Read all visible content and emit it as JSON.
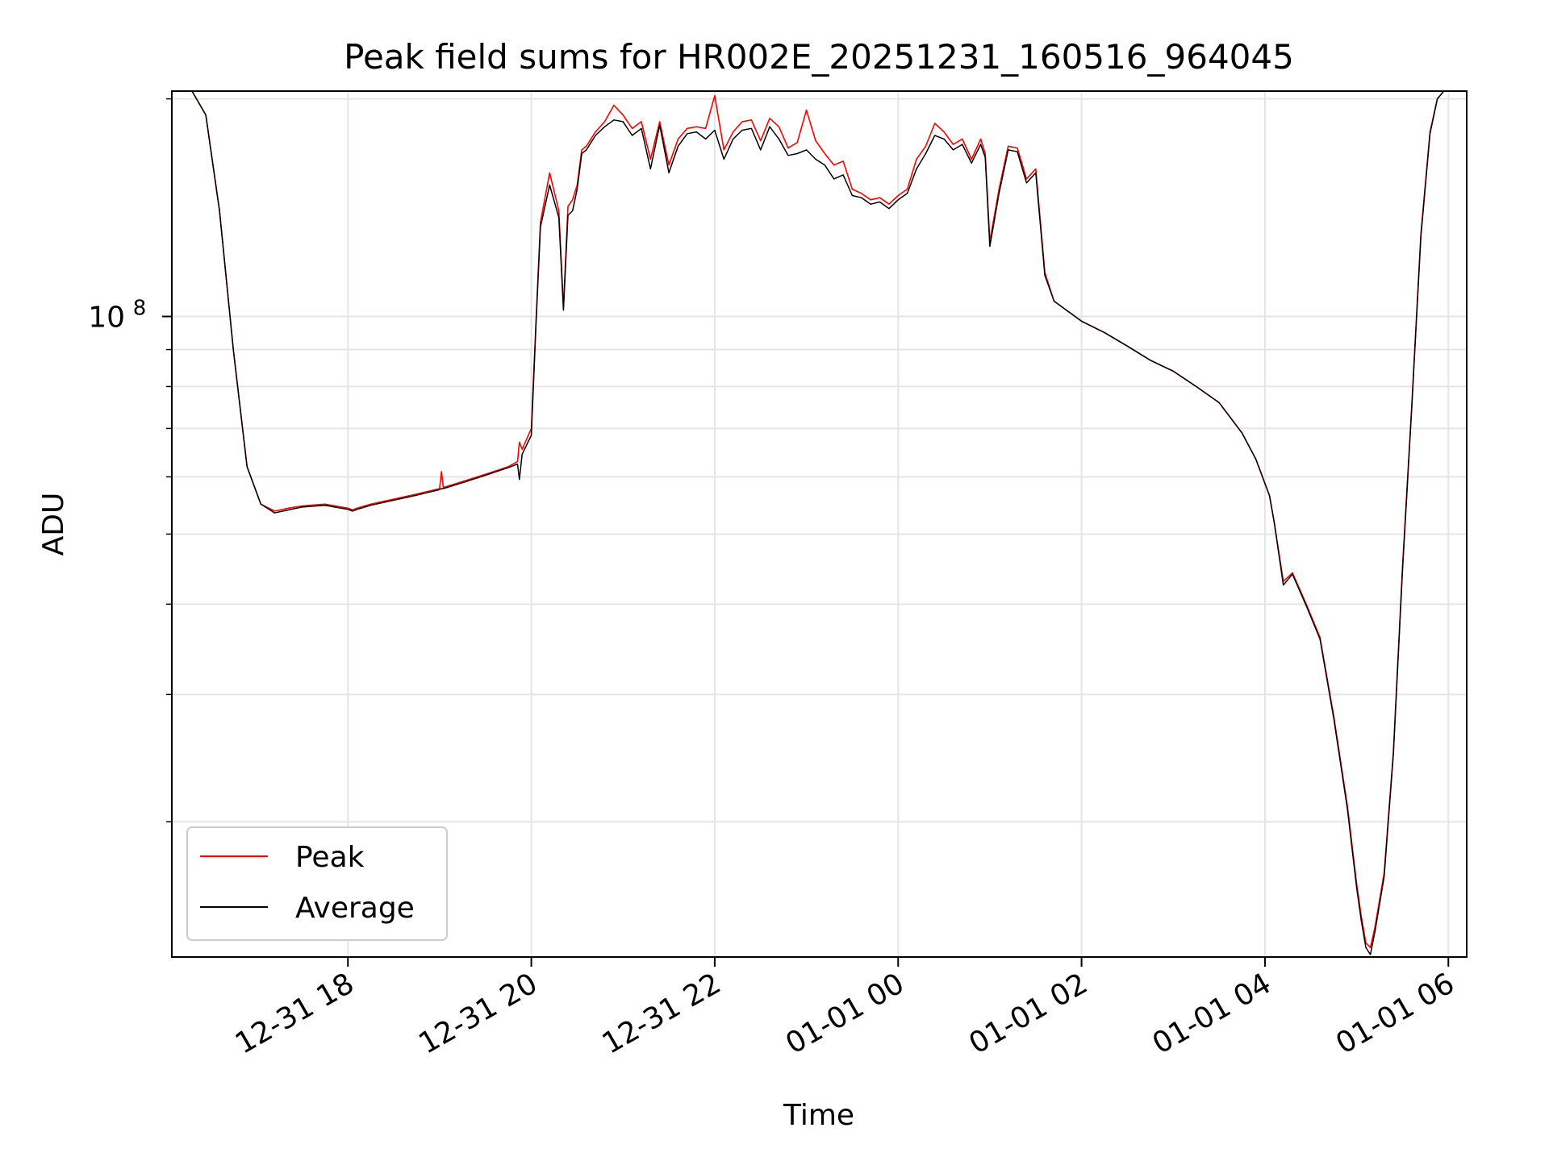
{
  "chart_data": {
    "type": "line",
    "title": "Peak field sums for HR002E_20251231_160516_964045",
    "xlabel": "Time",
    "ylabel": "ADU",
    "yscale": "log",
    "ylim": [
      13000000,
      205000000
    ],
    "xlim": [
      16.08,
      30.2
    ],
    "grid": true,
    "legend_position": "lower-left",
    "y_major_ticks": [
      {
        "value": 100000000,
        "label_base": "10",
        "label_exp": "8"
      }
    ],
    "y_minor_ticks": [
      20000000,
      30000000,
      40000000,
      50000000,
      60000000,
      70000000,
      80000000,
      90000000,
      200000000
    ],
    "x_ticks": [
      {
        "value": 18,
        "label": "12-31 18"
      },
      {
        "value": 20,
        "label": "12-31 20"
      },
      {
        "value": 22,
        "label": "12-31 22"
      },
      {
        "value": 24,
        "label": "01-01 00"
      },
      {
        "value": 26,
        "label": "01-01 02"
      },
      {
        "value": 28,
        "label": "01-01 04"
      },
      {
        "value": 30,
        "label": "01-01 06"
      }
    ],
    "x_unit": "hours since 2025-12-31 00:00",
    "series": [
      {
        "name": "Peak",
        "color": "#ff0000",
        "x": [
          16.3,
          16.45,
          16.6,
          16.75,
          16.9,
          17.05,
          17.2,
          17.35,
          17.5,
          17.75,
          18.0,
          18.05,
          18.1,
          18.25,
          18.5,
          18.75,
          19.0,
          19.02,
          19.04,
          19.25,
          19.5,
          19.75,
          19.85,
          19.87,
          19.9,
          20.0,
          20.05,
          20.1,
          20.2,
          20.3,
          20.35,
          20.4,
          20.45,
          20.5,
          20.55,
          20.6,
          20.7,
          20.8,
          20.9,
          21.0,
          21.1,
          21.2,
          21.3,
          21.4,
          21.5,
          21.6,
          21.7,
          21.8,
          21.9,
          22.0,
          22.1,
          22.2,
          22.3,
          22.4,
          22.5,
          22.6,
          22.7,
          22.8,
          22.9,
          23.0,
          23.1,
          23.2,
          23.3,
          23.4,
          23.5,
          23.6,
          23.7,
          23.8,
          23.9,
          24.0,
          24.1,
          24.2,
          24.3,
          24.4,
          24.5,
          24.6,
          24.7,
          24.8,
          24.9,
          24.95,
          25.0,
          25.1,
          25.2,
          25.3,
          25.4,
          25.5,
          25.6,
          25.7,
          26.0,
          26.25,
          26.5,
          26.75,
          27.0,
          27.25,
          27.5,
          27.75,
          27.9,
          28.05,
          28.1,
          28.2,
          28.3,
          28.45,
          28.6,
          28.75,
          28.9,
          29.0,
          29.05,
          29.1,
          29.15,
          29.2,
          29.3,
          29.4,
          29.5,
          29.6,
          29.7,
          29.8,
          29.88,
          29.95
        ],
        "values": [
          205000000,
          190000000,
          140000000,
          90000000,
          62000000,
          55000000,
          53800000,
          54300000,
          54700000,
          55000000,
          54300000,
          54000000,
          54300000,
          55000000,
          55900000,
          56800000,
          57800000,
          61000000,
          58000000,
          59100000,
          60500000,
          62000000,
          63000000,
          67000000,
          65500000,
          70000000,
          98000000,
          135000000,
          158000000,
          140000000,
          103000000,
          142000000,
          145000000,
          152000000,
          170000000,
          172000000,
          180000000,
          186000000,
          196000000,
          190000000,
          182000000,
          186000000,
          165000000,
          186000000,
          162000000,
          176000000,
          182000000,
          183000000,
          182000000,
          202000000,
          170000000,
          180000000,
          186000000,
          187000000,
          175000000,
          188000000,
          183000000,
          171000000,
          174000000,
          193000000,
          175000000,
          168000000,
          162000000,
          164000000,
          150000000,
          148000000,
          145000000,
          146000000,
          143000000,
          147000000,
          150000000,
          165000000,
          172000000,
          185000000,
          180000000,
          173000000,
          176000000,
          165000000,
          176000000,
          168000000,
          127000000,
          150000000,
          172000000,
          171000000,
          155000000,
          160000000,
          115000000,
          105000000,
          98500000,
          95000000,
          91000000,
          87000000,
          84000000,
          80000000,
          76000000,
          69000000,
          63500000,
          56500000,
          52000000,
          43000000,
          44200000,
          40000000,
          36000000,
          28000000,
          21000000,
          16400000,
          14800000,
          13600000,
          13400000,
          14300000,
          17000000,
          25000000,
          45000000,
          75000000,
          130000000,
          180000000,
          200000000,
          205000000
        ]
      },
      {
        "name": "Average",
        "color": "#000000",
        "x": [
          16.3,
          16.45,
          16.6,
          16.75,
          16.9,
          17.05,
          17.2,
          17.35,
          17.5,
          17.75,
          18.0,
          18.05,
          18.1,
          18.25,
          18.5,
          18.75,
          19.0,
          19.02,
          19.04,
          19.25,
          19.5,
          19.75,
          19.85,
          19.87,
          19.9,
          20.0,
          20.05,
          20.1,
          20.2,
          20.3,
          20.35,
          20.4,
          20.45,
          20.5,
          20.55,
          20.6,
          20.7,
          20.8,
          20.9,
          21.0,
          21.1,
          21.2,
          21.3,
          21.4,
          21.5,
          21.6,
          21.7,
          21.8,
          21.9,
          22.0,
          22.1,
          22.2,
          22.3,
          22.4,
          22.5,
          22.6,
          22.7,
          22.8,
          22.9,
          23.0,
          23.1,
          23.2,
          23.3,
          23.4,
          23.5,
          23.6,
          23.7,
          23.8,
          23.9,
          24.0,
          24.1,
          24.2,
          24.3,
          24.4,
          24.5,
          24.6,
          24.7,
          24.8,
          24.9,
          24.95,
          25.0,
          25.1,
          25.2,
          25.3,
          25.4,
          25.5,
          25.6,
          25.7,
          26.0,
          26.25,
          26.5,
          26.75,
          27.0,
          27.25,
          27.5,
          27.75,
          27.9,
          28.05,
          28.1,
          28.2,
          28.3,
          28.45,
          28.6,
          28.75,
          28.9,
          29.0,
          29.05,
          29.1,
          29.15,
          29.2,
          29.3,
          29.4,
          29.5,
          29.6,
          29.7,
          29.8,
          29.88,
          29.95
        ],
        "values": [
          205000000,
          190000000,
          140000000,
          90000000,
          62000000,
          55000000,
          53500000,
          54000000,
          54500000,
          54800000,
          54100000,
          53800000,
          54100000,
          54800000,
          55700000,
          56600000,
          57600000,
          57800000,
          57800000,
          58900000,
          60300000,
          61800000,
          62500000,
          59500000,
          64500000,
          68500000,
          97000000,
          133000000,
          152000000,
          137000000,
          102000000,
          138000000,
          140000000,
          150000000,
          168000000,
          170000000,
          178000000,
          183000000,
          187000000,
          186000000,
          178000000,
          182000000,
          160000000,
          184000000,
          158000000,
          172000000,
          179000000,
          180000000,
          176000000,
          181000000,
          165000000,
          176000000,
          181000000,
          182000000,
          170000000,
          183000000,
          176000000,
          167000000,
          168000000,
          170000000,
          165000000,
          162000000,
          155000000,
          157000000,
          147000000,
          146000000,
          143000000,
          144000000,
          141000000,
          145000000,
          148000000,
          160000000,
          168000000,
          178000000,
          176000000,
          170000000,
          173000000,
          163000000,
          173000000,
          166000000,
          125000000,
          148000000,
          170000000,
          169000000,
          153000000,
          158000000,
          114000000,
          105000000,
          98500000,
          95000000,
          91000000,
          87000000,
          84000000,
          80000000,
          76000000,
          69000000,
          63500000,
          56500000,
          52000000,
          42500000,
          44000000,
          39800000,
          35800000,
          27800000,
          20800000,
          16200000,
          14600000,
          13400000,
          13100000,
          14100000,
          16800000,
          24800000,
          44500000,
          74500000,
          129000000,
          179000000,
          200000000,
          205000000
        ]
      }
    ]
  }
}
